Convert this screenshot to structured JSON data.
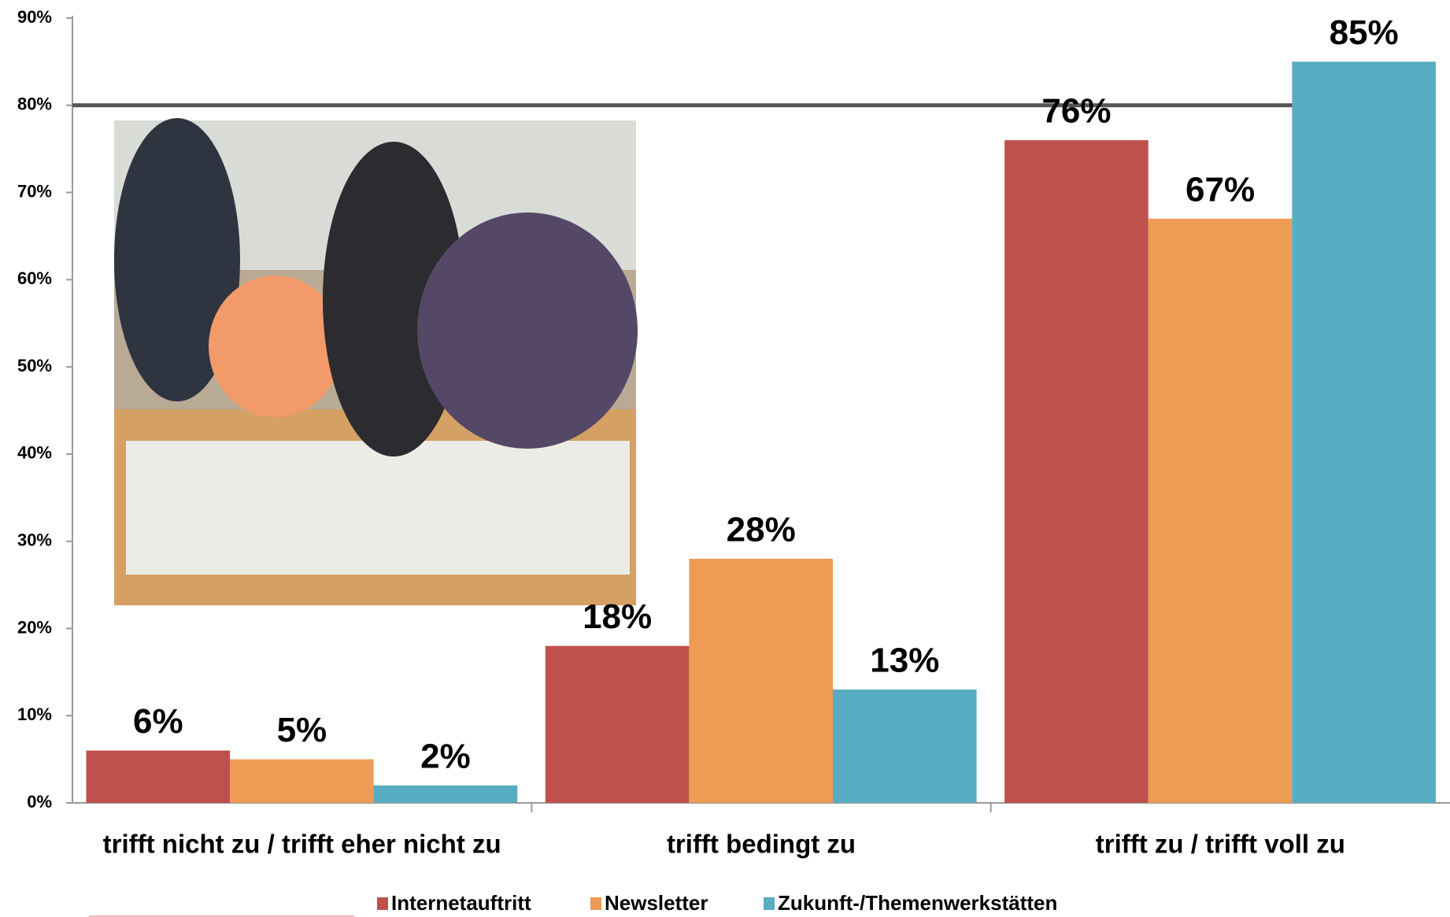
{
  "chart_data": {
    "type": "bar",
    "categories": [
      "trifft nicht zu / trifft eher nicht zu",
      "trifft bedingt zu",
      "trifft zu / trifft voll zu"
    ],
    "series": [
      {
        "name": "Internetauftritt",
        "color": "#c0504d",
        "values": [
          6,
          18,
          76
        ],
        "value_labels": [
          "6%",
          "18%",
          "76%"
        ]
      },
      {
        "name": "Newsletter",
        "color": "#ee9b56",
        "values": [
          5,
          28,
          67
        ],
        "value_labels": [
          "5%",
          "28%",
          "67%"
        ]
      },
      {
        "name": "Zukunft-/Themenwerkstätten",
        "color": "#57adc2",
        "values": [
          2,
          13,
          85
        ],
        "value_labels": [
          "2%",
          "13%",
          "85%"
        ]
      }
    ],
    "ylim": [
      0,
      90
    ],
    "yticks": [
      {
        "value": 0,
        "label": "0%"
      },
      {
        "value": 10,
        "label": "10%"
      },
      {
        "value": 20,
        "label": "20%"
      },
      {
        "value": 30,
        "label": "30%"
      },
      {
        "value": 40,
        "label": "40%"
      },
      {
        "value": 50,
        "label": "50%"
      },
      {
        "value": 60,
        "label": "60%"
      },
      {
        "value": 70,
        "label": "70%"
      },
      {
        "value": 80,
        "label": "80%"
      },
      {
        "value": 90,
        "label": "90%"
      }
    ],
    "reference_line": {
      "value": 80,
      "color": "#555555"
    },
    "legend": "bottom"
  }
}
